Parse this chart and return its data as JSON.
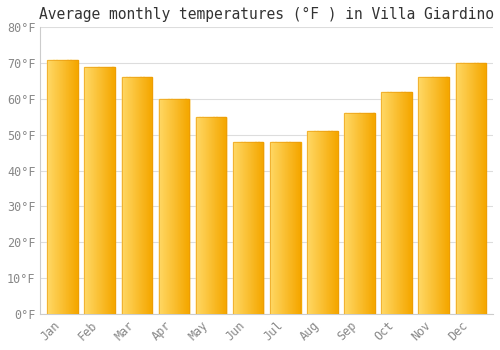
{
  "title": "Average monthly temperatures (°F ) in Villa Giardino",
  "months": [
    "Jan",
    "Feb",
    "Mar",
    "Apr",
    "May",
    "Jun",
    "Jul",
    "Aug",
    "Sep",
    "Oct",
    "Nov",
    "Dec"
  ],
  "values": [
    71,
    69,
    66,
    60,
    55,
    48,
    48,
    51,
    56,
    62,
    66,
    70
  ],
  "bar_color_dark": "#F5A800",
  "bar_color_light": "#FFD966",
  "bar_edge_color": "#E8960A",
  "background_color": "#FFFFFF",
  "plot_bg_color": "#FFFFFF",
  "grid_color": "#DDDDDD",
  "tick_label_color": "#888888",
  "title_color": "#333333",
  "ylim": [
    0,
    80
  ],
  "yticks": [
    0,
    10,
    20,
    30,
    40,
    50,
    60,
    70,
    80
  ],
  "ylabel_format": "°F",
  "title_fontsize": 10.5,
  "tick_fontsize": 8.5,
  "bar_width": 0.82,
  "gradient_steps": 50
}
